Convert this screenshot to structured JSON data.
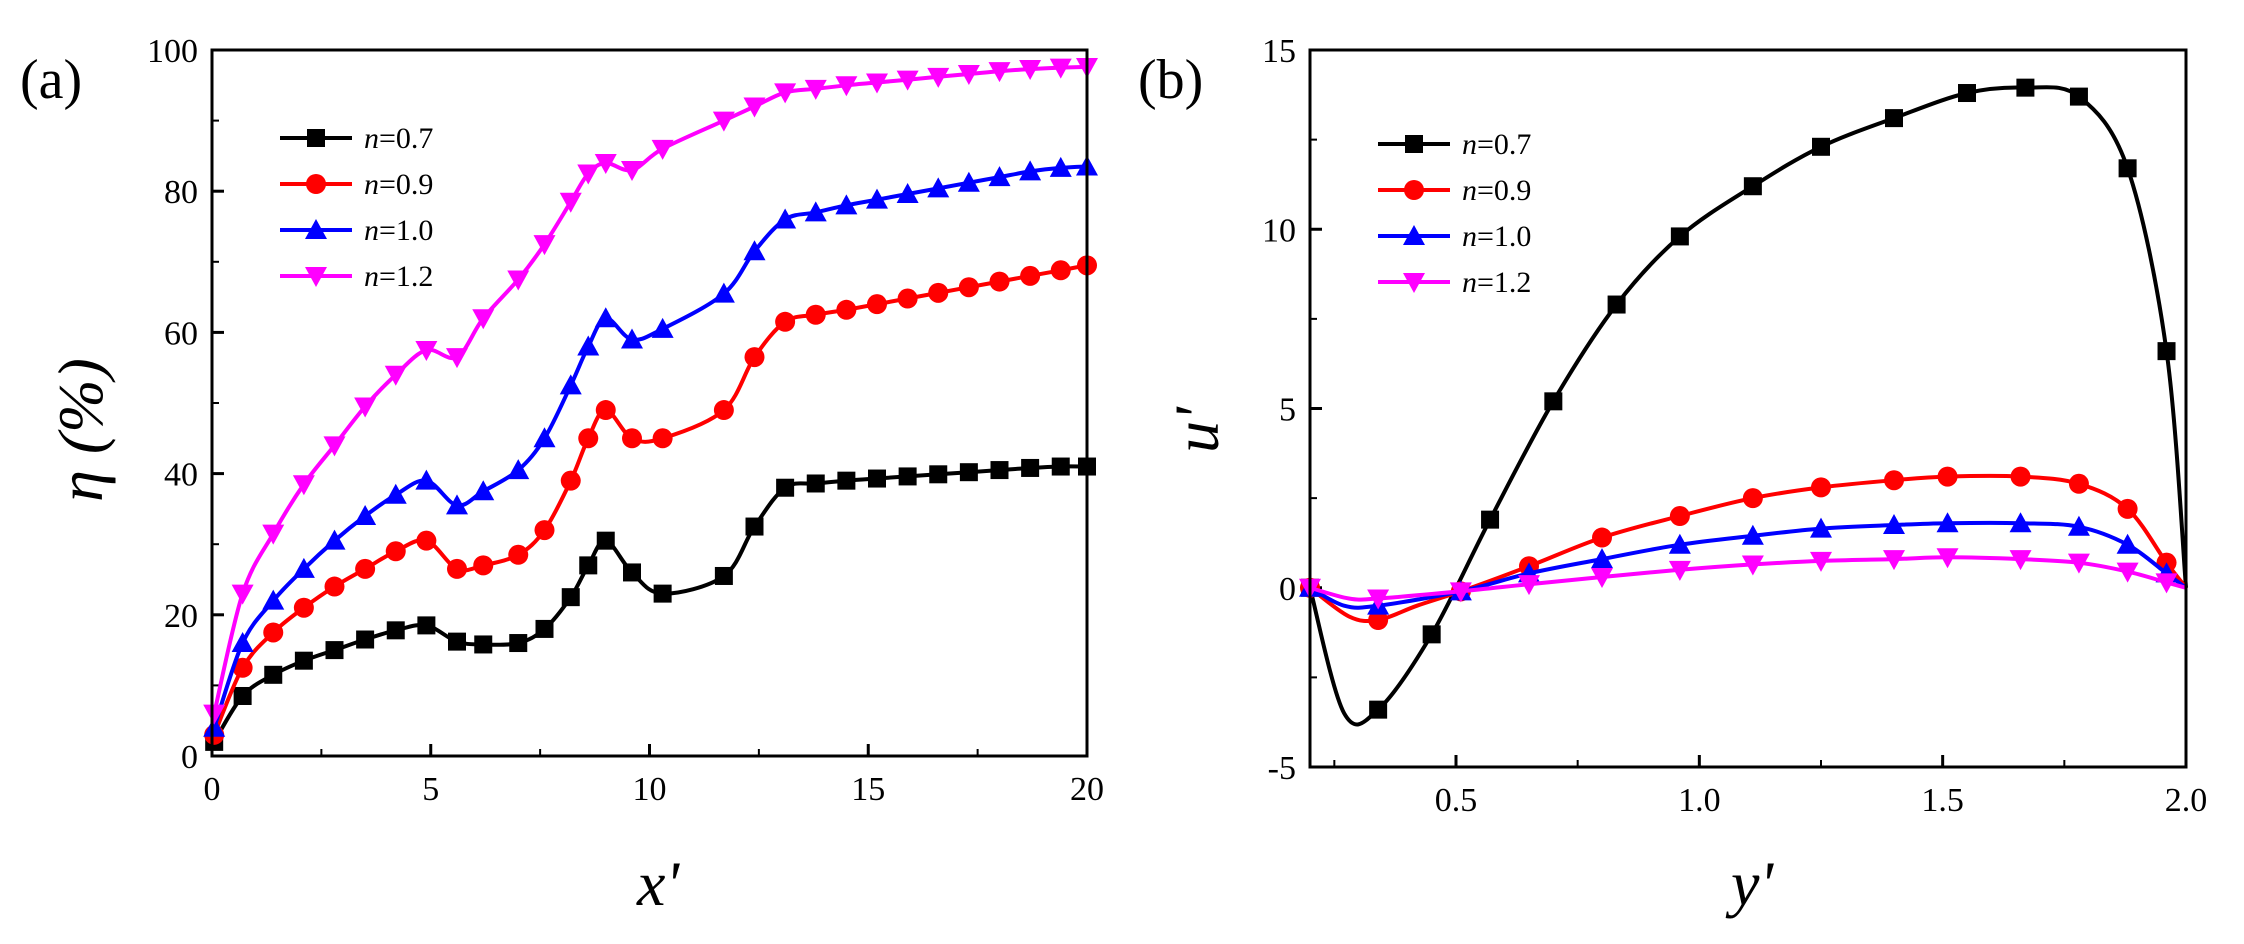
{
  "figure": {
    "panels": [
      {
        "panel_label": "(a)",
        "xlabel": "x'",
        "ylabel": "η (%)",
        "legend_position": "top-left",
        "chart_data": {
          "type": "line",
          "xlim": [
            0,
            20
          ],
          "ylim": [
            0,
            100
          ],
          "xticks": [
            0,
            5,
            10,
            15,
            20
          ],
          "yticks": [
            0,
            20,
            40,
            60,
            80,
            100
          ],
          "xtick_labels": [
            "0",
            "5",
            "10",
            "15",
            "20"
          ],
          "ytick_labels": [
            "0",
            "20",
            "40",
            "60",
            "80",
            "100"
          ],
          "grid": false,
          "series": [
            {
              "name": "n=0.7",
              "name_var": "n",
              "name_rest": "=0.7",
              "color": "#000000",
              "marker": "square",
              "x": [
                0.05,
                0.7,
                1.4,
                2.1,
                2.8,
                3.5,
                4.2,
                4.9,
                5.6,
                6.2,
                7.0,
                7.6,
                8.2,
                8.6,
                9.0,
                9.6,
                10.3,
                11.7,
                12.4,
                13.1,
                13.8,
                14.5,
                15.2,
                15.9,
                16.6,
                17.3,
                18.0,
                18.7,
                19.4,
                20.0
              ],
              "y": [
                2,
                8.5,
                11.5,
                13.5,
                15.0,
                16.5,
                17.8,
                18.5,
                16.2,
                15.8,
                16.0,
                18.0,
                22.5,
                27.0,
                30.5,
                26.0,
                23.0,
                25.5,
                32.5,
                38.0,
                38.6,
                39.0,
                39.3,
                39.6,
                39.9,
                40.2,
                40.5,
                40.8,
                41.0,
                41.0
              ]
            },
            {
              "name": "n=0.9",
              "name_var": "n",
              "name_rest": "=0.9",
              "color": "#ff0000",
              "marker": "circle",
              "x": [
                0.05,
                0.7,
                1.4,
                2.1,
                2.8,
                3.5,
                4.2,
                4.9,
                5.6,
                6.2,
                7.0,
                7.6,
                8.2,
                8.6,
                9.0,
                9.6,
                10.3,
                11.7,
                12.4,
                13.1,
                13.8,
                14.5,
                15.2,
                15.9,
                16.6,
                17.3,
                18.0,
                18.7,
                19.4,
                20.0
              ],
              "y": [
                3,
                12.5,
                17.5,
                21.0,
                24.0,
                26.5,
                29.0,
                30.5,
                26.5,
                27.0,
                28.5,
                32.0,
                39.0,
                45.0,
                49.0,
                45.0,
                45.0,
                49.0,
                56.5,
                61.5,
                62.5,
                63.2,
                64.0,
                64.8,
                65.6,
                66.4,
                67.2,
                68.0,
                68.8,
                69.5
              ]
            },
            {
              "name": "n=1.0",
              "name_var": "n",
              "name_rest": "=1.0",
              "color": "#0000ff",
              "marker": "triangle-up",
              "x": [
                0.05,
                0.7,
                1.4,
                2.1,
                2.8,
                3.5,
                4.2,
                4.9,
                5.6,
                6.2,
                7.0,
                7.6,
                8.2,
                8.6,
                9.0,
                9.6,
                10.3,
                11.7,
                12.4,
                13.1,
                13.8,
                14.5,
                15.2,
                15.9,
                16.6,
                17.3,
                18.0,
                18.7,
                19.4,
                20.0
              ],
              "y": [
                4,
                16.0,
                22.0,
                26.5,
                30.5,
                34.0,
                37.0,
                39.0,
                35.5,
                37.5,
                40.5,
                45.0,
                52.5,
                58.0,
                62.0,
                59.0,
                60.5,
                65.5,
                71.5,
                76.0,
                77.0,
                78.0,
                78.8,
                79.6,
                80.4,
                81.2,
                82.0,
                82.8,
                83.3,
                83.5
              ]
            },
            {
              "name": "n=1.2",
              "name_var": "n",
              "name_rest": "=1.2",
              "color": "#ff00ff",
              "marker": "triangle-down",
              "x": [
                0.05,
                0.7,
                1.4,
                2.1,
                2.8,
                3.5,
                4.2,
                4.9,
                5.6,
                6.2,
                7.0,
                7.6,
                8.2,
                8.6,
                9.0,
                9.6,
                10.3,
                11.7,
                12.4,
                13.1,
                13.8,
                14.5,
                15.2,
                15.9,
                16.6,
                17.3,
                18.0,
                18.7,
                19.4,
                20.0
              ],
              "y": [
                6,
                23.0,
                31.5,
                38.5,
                44.0,
                49.5,
                54.0,
                57.5,
                56.5,
                62.0,
                67.5,
                72.5,
                78.5,
                82.5,
                84.0,
                83.0,
                86.0,
                90.0,
                92.0,
                94.0,
                94.5,
                95.0,
                95.4,
                95.8,
                96.2,
                96.6,
                97.0,
                97.3,
                97.5,
                97.6
              ]
            }
          ]
        }
      },
      {
        "panel_label": "(b)",
        "xlabel": "y'",
        "ylabel": "u'",
        "legend_position": "top-left",
        "chart_data": {
          "type": "line",
          "xlim": [
            0.2,
            2.0
          ],
          "ylim": [
            -5,
            15
          ],
          "xticks": [
            0.5,
            1.0,
            1.5,
            2.0
          ],
          "yticks": [
            -5,
            0,
            5,
            10,
            15
          ],
          "xtick_labels": [
            "0.5",
            "1.0",
            "1.5",
            "2.0"
          ],
          "ytick_labels": [
            "-5",
            "0",
            "5",
            "10",
            "15"
          ],
          "grid": false,
          "series": [
            {
              "name": "n=0.7",
              "name_var": "n",
              "name_rest": "=0.7",
              "color": "#000000",
              "marker": "square",
              "x": [
                0.2,
                0.27,
                0.34,
                0.45,
                0.57,
                0.7,
                0.83,
                0.96,
                1.11,
                1.25,
                1.4,
                1.55,
                1.67,
                1.78,
                1.88,
                1.96,
                2.0
              ],
              "y": [
                0,
                -3.5,
                -3.4,
                -1.3,
                1.9,
                5.2,
                7.9,
                9.8,
                11.2,
                12.3,
                13.1,
                13.8,
                13.95,
                13.7,
                11.7,
                6.6,
                0
              ],
              "markers_x": [
                0.2,
                0.34,
                0.45,
                0.57,
                0.7,
                0.83,
                0.96,
                1.11,
                1.25,
                1.4,
                1.55,
                1.67,
                1.78,
                1.88,
                1.96
              ]
            },
            {
              "name": "n=0.9",
              "name_var": "n",
              "name_rest": "=0.9",
              "color": "#ff0000",
              "marker": "circle",
              "x": [
                0.2,
                0.28,
                0.34,
                0.42,
                0.51,
                0.65,
                0.8,
                0.96,
                1.11,
                1.25,
                1.4,
                1.51,
                1.66,
                1.78,
                1.88,
                1.96,
                2.0
              ],
              "y": [
                0,
                -0.8,
                -0.9,
                -0.5,
                -0.1,
                0.6,
                1.4,
                2.0,
                2.5,
                2.8,
                3.0,
                3.1,
                3.1,
                2.9,
                2.2,
                0.7,
                0
              ],
              "markers_x": [
                0.2,
                0.34,
                0.51,
                0.65,
                0.8,
                0.96,
                1.11,
                1.25,
                1.4,
                1.51,
                1.66,
                1.78,
                1.88,
                1.96
              ]
            },
            {
              "name": "n=1.0",
              "name_var": "n",
              "name_rest": "=1.0",
              "color": "#0000ff",
              "marker": "triangle-up",
              "x": [
                0.2,
                0.27,
                0.34,
                0.51,
                0.65,
                0.8,
                0.96,
                1.11,
                1.25,
                1.4,
                1.51,
                1.66,
                1.78,
                1.88,
                1.96,
                2.0
              ],
              "y": [
                0,
                -0.5,
                -0.5,
                -0.1,
                0.4,
                0.8,
                1.2,
                1.45,
                1.65,
                1.75,
                1.8,
                1.8,
                1.7,
                1.2,
                0.4,
                0
              ],
              "markers_x": [
                0.2,
                0.34,
                0.51,
                0.65,
                0.8,
                0.96,
                1.11,
                1.25,
                1.4,
                1.51,
                1.66,
                1.78,
                1.88,
                1.96
              ]
            },
            {
              "name": "n=1.2",
              "name_var": "n",
              "name_rest": "=1.2",
              "color": "#ff00ff",
              "marker": "triangle-down",
              "x": [
                0.2,
                0.28,
                0.34,
                0.51,
                0.65,
                0.8,
                0.96,
                1.11,
                1.25,
                1.4,
                1.51,
                1.66,
                1.78,
                1.88,
                1.96,
                2.0
              ],
              "y": [
                0,
                -0.3,
                -0.3,
                -0.1,
                0.1,
                0.3,
                0.5,
                0.65,
                0.75,
                0.8,
                0.85,
                0.8,
                0.7,
                0.45,
                0.15,
                0
              ],
              "markers_x": [
                0.2,
                0.34,
                0.51,
                0.65,
                0.8,
                0.96,
                1.11,
                1.25,
                1.4,
                1.51,
                1.66,
                1.78,
                1.88,
                1.96
              ]
            }
          ]
        }
      }
    ]
  }
}
